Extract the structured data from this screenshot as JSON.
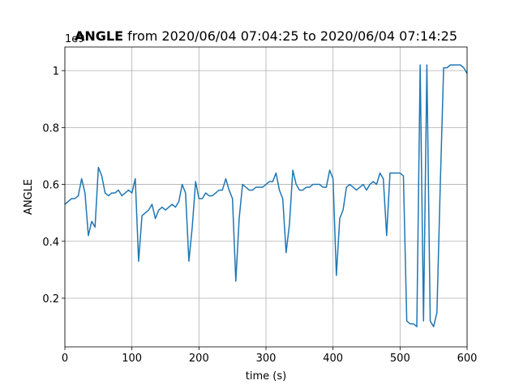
{
  "chart_data": {
    "type": "line",
    "title_bold": "ANGLE",
    "title": "from 2020/06/04 07:04:25 to 2020/06/04 07:14:25",
    "offset_label": "1e9",
    "x_label": "time (s)",
    "y_label": "ANGLE",
    "x": [
      0,
      5,
      10,
      15,
      20,
      25,
      30,
      35,
      40,
      45,
      50,
      55,
      60,
      65,
      70,
      75,
      80,
      85,
      90,
      95,
      100,
      105,
      110,
      115,
      120,
      125,
      130,
      135,
      140,
      145,
      150,
      155,
      160,
      165,
      170,
      175,
      180,
      185,
      190,
      195,
      200,
      205,
      210,
      215,
      220,
      225,
      230,
      235,
      240,
      245,
      250,
      255,
      260,
      265,
      270,
      275,
      280,
      285,
      290,
      295,
      300,
      305,
      310,
      315,
      320,
      325,
      330,
      335,
      340,
      345,
      350,
      355,
      360,
      365,
      370,
      375,
      380,
      385,
      390,
      395,
      400,
      405,
      410,
      415,
      420,
      425,
      430,
      435,
      440,
      445,
      450,
      455,
      460,
      465,
      470,
      475,
      480,
      485,
      490,
      495,
      500,
      505,
      510,
      515,
      520,
      525,
      530,
      535,
      540,
      545,
      550,
      555,
      560,
      565,
      570,
      575,
      580,
      585,
      590,
      595,
      600
    ],
    "series": [
      {
        "name": "ANGLE",
        "color": "#1f77b4",
        "values": [
          0.53,
          0.54,
          0.55,
          0.55,
          0.56,
          0.62,
          0.57,
          0.42,
          0.47,
          0.45,
          0.66,
          0.63,
          0.57,
          0.56,
          0.57,
          0.57,
          0.58,
          0.56,
          0.57,
          0.58,
          0.57,
          0.62,
          0.33,
          0.49,
          0.5,
          0.51,
          0.53,
          0.48,
          0.51,
          0.52,
          0.51,
          0.52,
          0.53,
          0.52,
          0.54,
          0.6,
          0.57,
          0.33,
          0.45,
          0.61,
          0.55,
          0.55,
          0.57,
          0.56,
          0.56,
          0.57,
          0.58,
          0.58,
          0.62,
          0.58,
          0.55,
          0.26,
          0.48,
          0.6,
          0.59,
          0.58,
          0.58,
          0.59,
          0.59,
          0.59,
          0.6,
          0.61,
          0.61,
          0.64,
          0.58,
          0.55,
          0.36,
          0.46,
          0.65,
          0.6,
          0.58,
          0.58,
          0.59,
          0.59,
          0.6,
          0.6,
          0.6,
          0.59,
          0.59,
          0.65,
          0.62,
          0.28,
          0.48,
          0.51,
          0.59,
          0.6,
          0.59,
          0.58,
          0.59,
          0.6,
          0.58,
          0.6,
          0.61,
          0.6,
          0.64,
          0.62,
          0.42,
          0.64,
          0.64,
          0.64,
          0.64,
          0.63,
          0.12,
          0.11,
          0.11,
          0.1,
          1.02,
          0.12,
          1.02,
          0.12,
          0.1,
          0.15,
          0.6,
          1.01,
          1.01,
          1.02,
          1.02,
          1.02,
          1.02,
          1.01,
          0.99
        ]
      }
    ],
    "xlim": [
      0,
      600
    ],
    "ylim": [
      0.029,
      1.083
    ],
    "xticks": [
      0,
      100,
      200,
      300,
      400,
      500,
      600
    ],
    "yticks": [
      0.2,
      0.4,
      0.6,
      0.8,
      1.0
    ],
    "grid": true
  }
}
